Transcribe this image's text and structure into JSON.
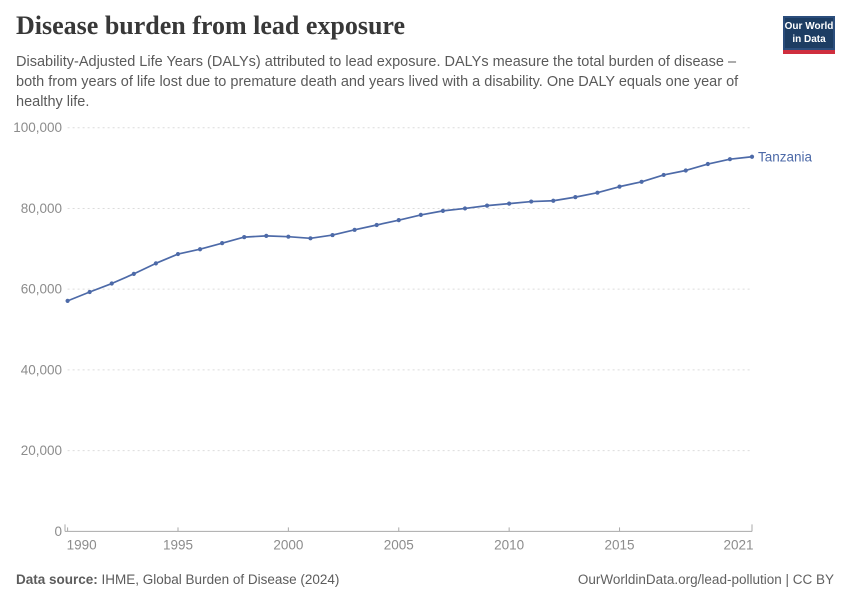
{
  "header": {
    "title": "Disease burden from lead exposure",
    "subtitle": "Disability-Adjusted Life Years (DALYs) attributed to lead exposure. DALYs measure the total burden of disease – both from years of life lost due to premature death and years lived with a disability. One DALY equals one year of healthy life.",
    "logo": {
      "line1": "Our World",
      "line2": "in Data",
      "bg_color": "#1d3d63",
      "stripe_color": "#cf2e3e"
    }
  },
  "chart_data": {
    "type": "line",
    "title": "Disease burden from lead exposure",
    "xlabel": "",
    "ylabel": "",
    "x": [
      1990,
      1991,
      1992,
      1993,
      1994,
      1995,
      1996,
      1997,
      1998,
      1999,
      2000,
      2001,
      2002,
      2003,
      2004,
      2005,
      2006,
      2007,
      2008,
      2009,
      2010,
      2011,
      2012,
      2013,
      2014,
      2015,
      2016,
      2017,
      2018,
      2019,
      2020,
      2021
    ],
    "series": [
      {
        "name": "Tanzania",
        "color": "#4d6aa8",
        "values": [
          57100,
          59300,
          61400,
          63800,
          66400,
          68700,
          69900,
          71400,
          72900,
          73200,
          73000,
          72600,
          73400,
          74700,
          75900,
          77100,
          78400,
          79400,
          80000,
          80700,
          81200,
          81700,
          81900,
          82800,
          83900,
          85400,
          86600,
          88300,
          89400,
          91000,
          92200,
          92800
        ]
      }
    ],
    "ylim": [
      0,
      100000
    ],
    "yticks": [
      0,
      20000,
      40000,
      60000,
      80000,
      100000
    ],
    "ytick_labels": [
      "0",
      "20,000",
      "40,000",
      "60,000",
      "80,000",
      "100,000"
    ],
    "xticks": [
      1990,
      1995,
      2000,
      2005,
      2010,
      2015,
      2021
    ],
    "grid": "horizontal dashed",
    "legend_position": "end-of-line label",
    "colors": {
      "gridline": "#dcdcdc",
      "axis": "#a9a9a9",
      "tick_label": "#8c8c8c"
    }
  },
  "footer": {
    "source_label": "Data source:",
    "source_rest": " IHME, Global Burden of Disease (2024)",
    "credit": "OurWorldinData.org/lead-pollution | CC BY"
  }
}
